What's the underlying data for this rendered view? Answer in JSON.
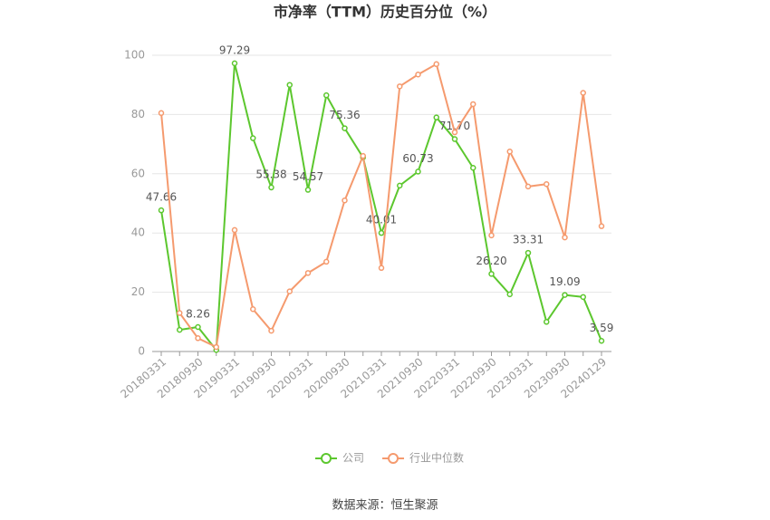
{
  "chart_data": {
    "type": "line",
    "title": "市净率（TTM）历史百分位（%）",
    "source": "数据来源：恒生聚源",
    "categories": [
      "20180331",
      null,
      "20180930",
      null,
      "20190331",
      null,
      "20190930",
      null,
      "20200331",
      null,
      "20200930",
      null,
      "20210331",
      null,
      "20210930",
      null,
      "20220331",
      null,
      "20220930",
      null,
      "20230331",
      null,
      "20230930",
      null,
      "20240129"
    ],
    "series": [
      {
        "name": "公司",
        "color": "#5cc72e",
        "values": [
          47.66,
          7.3,
          8.26,
          0.5,
          97.29,
          72,
          55.38,
          90,
          54.57,
          86.5,
          75.36,
          65.5,
          40.01,
          56,
          60.73,
          79,
          71.7,
          62,
          26.2,
          19.3,
          33.31,
          10,
          19.09,
          18.4,
          3.59
        ],
        "value_labels": [
          "47.66",
          null,
          "8.26",
          null,
          "97.29",
          null,
          "55.38",
          null,
          "54.57",
          null,
          "75.36",
          null,
          "40.01",
          null,
          "60.73",
          null,
          "71.70",
          null,
          "26.20",
          null,
          "33.31",
          null,
          "19.09",
          null,
          "3.59"
        ]
      },
      {
        "name": "行业中位数",
        "color": "#f59a6e",
        "values": [
          80.5,
          13,
          4.5,
          1.5,
          41,
          14.3,
          7,
          20.3,
          26.5,
          30.3,
          51,
          66,
          28.2,
          89.5,
          93.5,
          97,
          74,
          83.5,
          39.2,
          67.5,
          55.7,
          56.5,
          38.5,
          87.3,
          42.3
        ]
      }
    ],
    "ylim": [
      0,
      100
    ],
    "yticks": [
      0,
      20,
      40,
      60,
      80,
      100
    ],
    "grid": true,
    "legend": "bottom"
  }
}
